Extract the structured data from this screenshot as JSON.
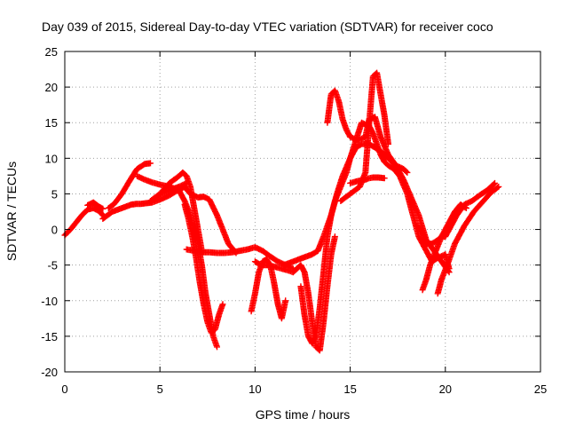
{
  "chart_data": {
    "type": "scatter",
    "title": "Day 039 of 2015, Sidereal Day-to-day VTEC variation (SDTVAR) for receiver coco",
    "xlabel": "GPS time / hours",
    "ylabel": "SDTVAR / TECUs",
    "xlim": [
      0,
      25
    ],
    "ylim": [
      -20,
      25
    ],
    "xticks": [
      0,
      5,
      10,
      15,
      20,
      25
    ],
    "yticks": [
      -20,
      -15,
      -10,
      -5,
      0,
      5,
      10,
      15,
      20,
      25
    ],
    "grid": true,
    "marker": "+",
    "color": "#ff0000",
    "series": [
      {
        "x": [
          0.0,
          0.3,
          0.6,
          0.9,
          1.2,
          1.5,
          1.8,
          2.0
        ],
        "y": [
          -0.8,
          0.0,
          1.0,
          2.0,
          2.8,
          3.0,
          2.6,
          2.0
        ]
      },
      {
        "x": [
          1.2,
          1.5,
          1.8,
          2.0
        ],
        "y": [
          3.4,
          3.8,
          3.2,
          2.9
        ]
      },
      {
        "x": [
          2.0,
          2.5,
          3.0,
          3.5,
          3.8,
          4.0,
          4.3,
          4.6,
          5.0,
          5.5,
          6.0,
          6.3,
          6.6,
          7.0,
          7.3,
          7.6,
          8.0,
          8.3,
          8.6,
          9.0
        ],
        "y": [
          1.5,
          2.5,
          3.0,
          3.5,
          3.6,
          3.6,
          3.7,
          3.8,
          4.2,
          4.8,
          5.6,
          6.0,
          5.0,
          4.5,
          4.6,
          4.2,
          2.0,
          0.0,
          -2.0,
          -3.3
        ]
      },
      {
        "x": [
          2.3,
          2.6,
          3.0,
          3.4,
          3.8,
          4.2,
          4.5
        ],
        "y": [
          3.0,
          3.6,
          5.0,
          6.8,
          8.5,
          9.2,
          9.3
        ]
      },
      {
        "x": [
          3.8,
          4.2,
          4.6,
          5.0,
          5.5,
          6.0,
          6.3,
          6.6,
          7.0,
          7.2,
          7.4,
          7.6,
          7.8,
          8.0
        ],
        "y": [
          7.5,
          7.0,
          6.6,
          6.3,
          6.0,
          5.5,
          4.0,
          2.0,
          -2.0,
          -5.0,
          -9.0,
          -12.0,
          -15.0,
          -16.5
        ]
      },
      {
        "x": [
          5.0,
          5.5,
          6.0,
          6.2,
          6.4,
          6.6,
          6.8,
          7.0,
          7.2
        ],
        "y": [
          5.0,
          6.5,
          7.5,
          8.0,
          7.5,
          6.0,
          3.0,
          0.0,
          -3.0
        ]
      },
      {
        "x": [
          6.3,
          6.5,
          6.7,
          6.9,
          7.1,
          7.3,
          7.5,
          7.7,
          7.9,
          8.1,
          8.3
        ],
        "y": [
          3.5,
          1.5,
          -1.0,
          -4.0,
          -7.5,
          -10.5,
          -13.0,
          -14.5,
          -14.0,
          -12.0,
          -10.5
        ]
      },
      {
        "x": [
          6.4,
          6.8,
          7.2,
          7.6,
          8.0,
          8.4,
          8.8,
          9.2,
          9.6,
          10.0,
          10.4,
          10.8,
          11.2,
          11.6,
          12.0
        ],
        "y": [
          -2.8,
          -3.0,
          -3.2,
          -3.2,
          -3.3,
          -3.3,
          -3.2,
          -3.0,
          -2.8,
          -2.5,
          -3.0,
          -3.8,
          -4.5,
          -5.0,
          -5.5
        ]
      },
      {
        "x": [
          9.8,
          10.0,
          10.2,
          10.4,
          10.6,
          10.8,
          11.0,
          11.2,
          11.4,
          11.6
        ],
        "y": [
          -11.5,
          -9.0,
          -6.0,
          -4.5,
          -4.2,
          -5.0,
          -7.5,
          -10.5,
          -12.5,
          -10.0
        ]
      },
      {
        "x": [
          10.0,
          10.3,
          10.6,
          11.0,
          11.4,
          11.8,
          12.0,
          12.2,
          12.4,
          12.6,
          12.8,
          13.0,
          13.2,
          13.4,
          13.6,
          13.8,
          14.0,
          14.2
        ],
        "y": [
          -4.5,
          -5.0,
          -5.0,
          -5.2,
          -5.5,
          -5.8,
          -6.0,
          -5.5,
          -5.0,
          -6.0,
          -9.0,
          -13.0,
          -16.5,
          -17.0,
          -13.0,
          -8.0,
          -3.5,
          -1.0
        ]
      },
      {
        "x": [
          11.5,
          12.0,
          12.5,
          13.0,
          13.3,
          13.6,
          14.0,
          14.3,
          14.6,
          15.0,
          15.3,
          15.6,
          16.0,
          16.3,
          16.6,
          17.0,
          17.4,
          17.8,
          18.0
        ],
        "y": [
          -5.0,
          -4.5,
          -4.0,
          -3.5,
          -3.0,
          -1.0,
          2.0,
          5.0,
          7.5,
          10.0,
          11.5,
          12.0,
          12.0,
          11.5,
          11.0,
          10.0,
          9.0,
          8.5,
          8.0
        ]
      },
      {
        "x": [
          12.4,
          12.6,
          12.8,
          13.0,
          13.2,
          13.4,
          13.6,
          13.8,
          14.0,
          14.2,
          14.5,
          14.8,
          15.0,
          15.3,
          15.6,
          16.0,
          16.2,
          16.4,
          16.6,
          16.8,
          17.0,
          17.3,
          17.6,
          18.0,
          18.3,
          18.6,
          19.0,
          19.3,
          19.6,
          20.0,
          20.2
        ],
        "y": [
          -8.0,
          -12.0,
          -15.0,
          -16.0,
          -15.0,
          -11.0,
          -6.0,
          -1.0,
          2.0,
          4.0,
          6.0,
          8.0,
          10.0,
          12.5,
          15.0,
          14.5,
          13.5,
          12.0,
          10.5,
          9.5,
          9.0,
          8.5,
          7.5,
          5.0,
          2.0,
          -1.0,
          -3.0,
          -4.5,
          -4.0,
          -3.5,
          -5.5
        ]
      },
      {
        "x": [
          13.8,
          14.0,
          14.2,
          14.4,
          14.6,
          14.8,
          15.0,
          15.4,
          15.8,
          16.0,
          16.3,
          16.6,
          17.0,
          17.4,
          17.8,
          18.2,
          18.6,
          19.0,
          19.4,
          19.8,
          20.2
        ],
        "y": [
          15.0,
          19.0,
          19.5,
          18.0,
          15.5,
          14.0,
          13.0,
          12.5,
          13.0,
          15.5,
          15.8,
          13.0,
          10.5,
          9.0,
          7.0,
          4.5,
          2.0,
          -1.5,
          -3.0,
          -4.5,
          -6.0
        ]
      },
      {
        "x": [
          14.5,
          15.0,
          15.5,
          15.8,
          16.0,
          16.2,
          16.4,
          16.6,
          16.8,
          17.0
        ],
        "y": [
          4.0,
          5.0,
          6.0,
          8.0,
          15.0,
          21.5,
          22.0,
          19.0,
          16.0,
          12.0
        ]
      },
      {
        "x": [
          15.0,
          15.4,
          15.8,
          16.0,
          16.2,
          16.5,
          16.8
        ],
        "y": [
          6.5,
          6.8,
          7.0,
          7.2,
          7.3,
          7.3,
          7.2
        ]
      },
      {
        "x": [
          18.5,
          18.8,
          19.0,
          19.3,
          19.6,
          19.8,
          20.0,
          20.3,
          20.6,
          21.0,
          21.4,
          21.8,
          22.2,
          22.6
        ],
        "y": [
          0.5,
          -0.5,
          -2.0,
          -2.0,
          -1.5,
          -1.0,
          -1.0,
          0.5,
          2.0,
          3.5,
          4.0,
          4.8,
          5.5,
          6.5
        ]
      },
      {
        "x": [
          18.8,
          19.0,
          19.2,
          19.5,
          19.8,
          20.0,
          20.2,
          20.5,
          20.8,
          21.1
        ],
        "y": [
          -8.5,
          -7.0,
          -5.0,
          -3.0,
          -1.0,
          0.0,
          1.0,
          2.5,
          3.5,
          3.0
        ]
      },
      {
        "x": [
          19.6,
          19.8,
          20.1,
          20.5,
          21.0,
          21.5,
          22.0,
          22.4,
          22.8
        ],
        "y": [
          -9.0,
          -7.0,
          -5.0,
          -2.0,
          0.5,
          2.5,
          4.0,
          5.2,
          6.0
        ]
      },
      {
        "x": [
          4.5,
          5.0,
          5.5,
          6.0,
          6.4
        ],
        "y": [
          4.0,
          5.0,
          5.5,
          6.0,
          6.5
        ]
      }
    ]
  }
}
